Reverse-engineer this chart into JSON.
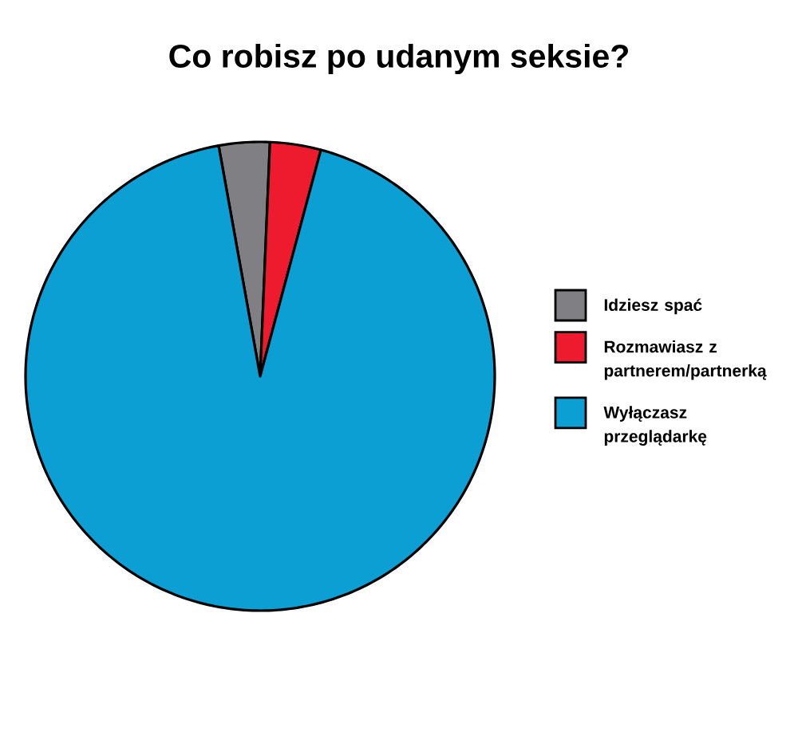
{
  "chart_data": {
    "type": "pie",
    "title": "Co robisz po udanym seksie?",
    "categories": [
      "Idziesz spać",
      "Rozmawiasz z partnerem/partnerką",
      "Wyłączasz przeglądarkę"
    ],
    "values": [
      3.5,
      3.5,
      93
    ],
    "colors": [
      "#808084",
      "#ee1b2e",
      "#0b9fd3"
    ],
    "legend": "right"
  }
}
